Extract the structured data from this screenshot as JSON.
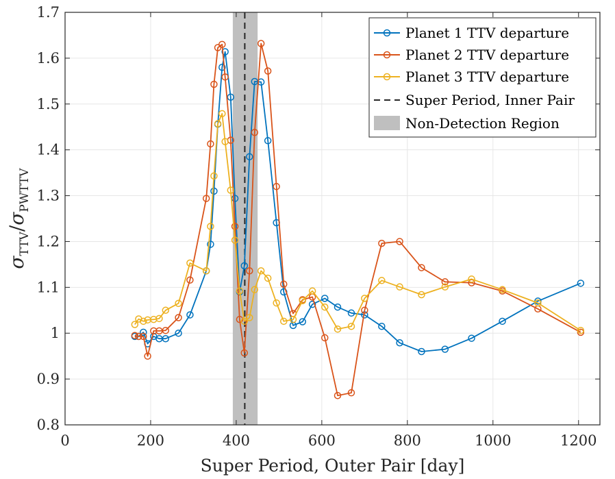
{
  "chart_data": {
    "type": "line",
    "xlabel": "Super Period, Outer Pair [day]",
    "ylabel_main": "σ",
    "ylabel_sub_top": "TTV",
    "ylabel_sep": "/",
    "ylabel_main2": "σ",
    "ylabel_sub_bottom": "PWTTV",
    "xlim": [
      0,
      1250
    ],
    "ylim": [
      0.8,
      1.7
    ],
    "xticks": [
      "0",
      "200",
      "400",
      "600",
      "800",
      "1000",
      "1200"
    ],
    "yticks": [
      "0.8",
      "0.9",
      "1",
      "1.1",
      "1.2",
      "1.3",
      "1.4",
      "1.5",
      "1.6",
      "1.7"
    ],
    "grid": true,
    "legend_position": "top-right",
    "shaded_region": {
      "label": "Non-Detection Region",
      "x_start": 392,
      "x_end": 450,
      "color": "#bfbfbf"
    },
    "vline": {
      "label": "Super Period, Inner Pair",
      "x": 420,
      "color": "#262626"
    },
    "series": [
      {
        "name": "Planet 1 TTV departure",
        "color": "#0072BD",
        "x": [
          163,
          172,
          183,
          193,
          207,
          220,
          235,
          265,
          292,
          330,
          340,
          348,
          357,
          367,
          374,
          387,
          397,
          408,
          419,
          431,
          443,
          458,
          474,
          494,
          511,
          533,
          555,
          578,
          607,
          637,
          669,
          700,
          740,
          782,
          833,
          888,
          950,
          1022,
          1105,
          1205
        ],
        "y": [
          0.993,
          0.993,
          1.002,
          0.977,
          0.993,
          0.988,
          0.988,
          1.0,
          1.04,
          1.136,
          1.194,
          1.31,
          1.456,
          1.58,
          1.614,
          1.515,
          1.294,
          1.09,
          1.147,
          1.385,
          1.549,
          1.548,
          1.42,
          1.241,
          1.09,
          1.017,
          1.025,
          1.063,
          1.076,
          1.057,
          1.044,
          1.04,
          1.015,
          0.979,
          0.96,
          0.965,
          0.989,
          1.026,
          1.07,
          1.109
        ]
      },
      {
        "name": "Planet 2 TTV departure",
        "color": "#D95319",
        "x": [
          163,
          172,
          183,
          193,
          207,
          220,
          235,
          265,
          292,
          330,
          340,
          348,
          357,
          367,
          374,
          387,
          397,
          408,
          419,
          431,
          443,
          458,
          474,
          494,
          511,
          533,
          555,
          578,
          607,
          637,
          669,
          700,
          740,
          782,
          833,
          888,
          950,
          1022,
          1105,
          1205
        ],
        "y": [
          0.995,
          0.993,
          0.993,
          0.95,
          1.005,
          1.005,
          1.006,
          1.034,
          1.116,
          1.294,
          1.413,
          1.543,
          1.623,
          1.63,
          1.559,
          1.421,
          1.233,
          1.03,
          0.957,
          1.136,
          1.438,
          1.632,
          1.572,
          1.32,
          1.107,
          1.043,
          1.073,
          1.079,
          0.99,
          0.864,
          0.87,
          1.05,
          1.196,
          1.2,
          1.143,
          1.112,
          1.11,
          1.092,
          1.053,
          1.002
        ]
      },
      {
        "name": "Planet 3 TTV departure",
        "color": "#EDB120",
        "x": [
          163,
          172,
          183,
          193,
          207,
          220,
          235,
          265,
          292,
          330,
          340,
          348,
          357,
          367,
          374,
          387,
          397,
          408,
          419,
          431,
          443,
          458,
          474,
          494,
          511,
          533,
          555,
          578,
          607,
          637,
          669,
          700,
          740,
          782,
          833,
          888,
          950,
          1022,
          1105,
          1205
        ],
        "y": [
          1.019,
          1.031,
          1.026,
          1.029,
          1.03,
          1.032,
          1.05,
          1.065,
          1.153,
          1.136,
          1.233,
          1.343,
          1.457,
          1.479,
          1.418,
          1.312,
          1.203,
          1.092,
          1.026,
          1.034,
          1.095,
          1.136,
          1.12,
          1.066,
          1.026,
          1.03,
          1.071,
          1.092,
          1.057,
          1.009,
          1.015,
          1.076,
          1.115,
          1.101,
          1.084,
          1.101,
          1.118,
          1.095,
          1.066,
          1.006
        ]
      }
    ]
  }
}
